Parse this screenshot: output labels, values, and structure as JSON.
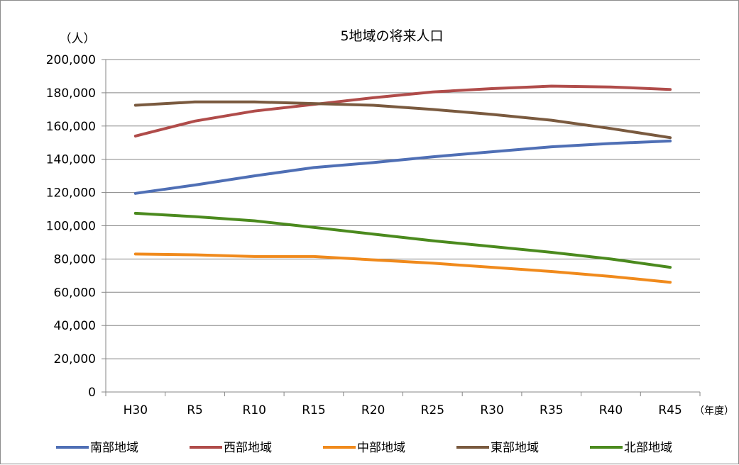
{
  "chart_data": {
    "type": "line",
    "title": "5地域の将来人口",
    "ylabel": "（人）",
    "xlabel": "（年度）",
    "ylim": [
      0,
      200000
    ],
    "ytick_step": 20000,
    "y_ticks": [
      "0",
      "20,000",
      "40,000",
      "60,000",
      "80,000",
      "100,000",
      "120,000",
      "140,000",
      "160,000",
      "180,000",
      "200,000"
    ],
    "grid": true,
    "legend_position": "bottom",
    "categories": [
      "H30",
      "R5",
      "R10",
      "R15",
      "R20",
      "R25",
      "R30",
      "R35",
      "R40",
      "R45"
    ],
    "series": [
      {
        "name": "南部地域",
        "color": "#4f6fb5",
        "values": [
          119500,
          124500,
          130000,
          135000,
          138000,
          141500,
          144500,
          147500,
          149500,
          151000
        ]
      },
      {
        "name": "西部地域",
        "color": "#b04c4a",
        "values": [
          154000,
          163000,
          169000,
          173000,
          177000,
          180500,
          182500,
          184000,
          183500,
          182000
        ]
      },
      {
        "name": "中部地域",
        "color": "#f08a1c",
        "values": [
          83000,
          82500,
          81500,
          81500,
          79500,
          77500,
          75000,
          72500,
          69500,
          66000
        ]
      },
      {
        "name": "東部地域",
        "color": "#7a5a3f",
        "values": [
          172500,
          174500,
          174500,
          173500,
          172500,
          170000,
          167000,
          163500,
          158500,
          153000
        ]
      },
      {
        "name": "北部地域",
        "color": "#4b8a1e",
        "values": [
          107500,
          105500,
          103000,
          99000,
          95000,
          91000,
          87500,
          84000,
          80000,
          75000
        ]
      }
    ]
  }
}
